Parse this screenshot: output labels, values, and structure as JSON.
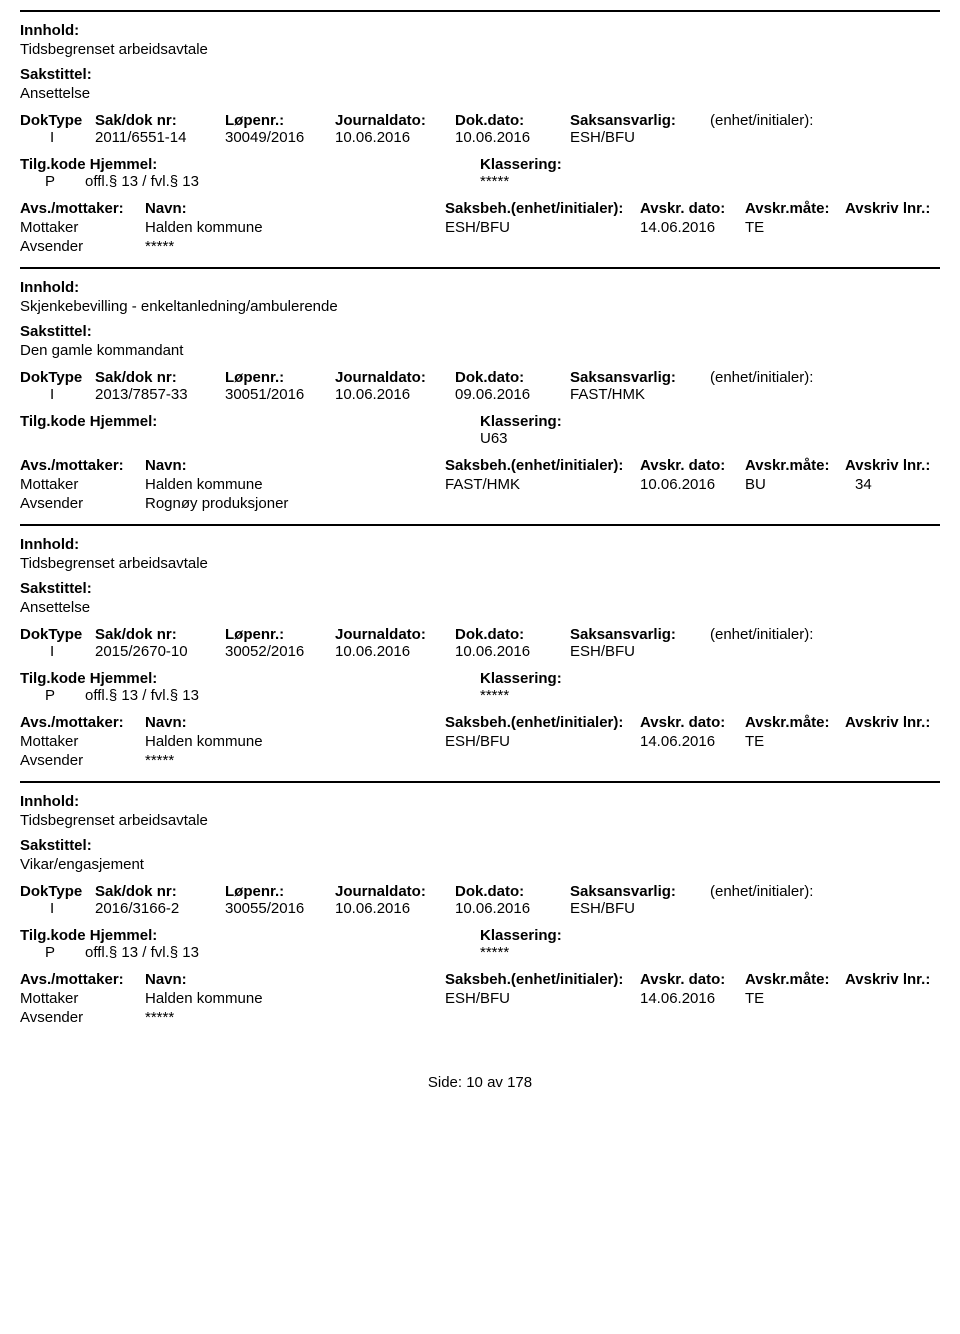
{
  "labels": {
    "innhold": "Innhold:",
    "sakstittel": "Sakstittel:",
    "doktype": "DokType",
    "sakdok": "Sak/dok nr:",
    "lopenr": "Løpenr.:",
    "journaldato": "Journaldato:",
    "dokdato": "Dok.dato:",
    "saksansvarlig": "Saksansvarlig:",
    "enhet": "(enhet/initialer):",
    "tilgkode": "Tilg.kode",
    "hjemmel": "Hjemmel:",
    "klassering": "Klassering:",
    "avsmottaker": "Avs./mottaker:",
    "navn": "Navn:",
    "saksbeh_enhet": "Saksbeh.(enhet/initialer):",
    "avskrdato": "Avskr. dato:",
    "avskrmate": "Avskr.måte:",
    "avskrlnr": "Avskriv lnr.:",
    "mottaker": "Mottaker",
    "avsender": "Avsender",
    "side": "Side:",
    "av": "av"
  },
  "entries": [
    {
      "innhold": "Tidsbegrenset arbeidsavtale",
      "sakstittel": "Ansettelse",
      "doktype": "I",
      "sakdok": "2011/6551-14",
      "lopenr": "30049/2016",
      "journaldato": "10.06.2016",
      "dokdato": "10.06.2016",
      "saksansvarlig": "ESH/BFU",
      "tilgkode": "P",
      "hjemmel": "offl.§ 13 / fvl.§ 13",
      "klassering": "*****",
      "parties": [
        {
          "role": "Mottaker",
          "navn": "Halden kommune",
          "saksbeh": "ESH/BFU",
          "avskrdato": "14.06.2016",
          "avskrmate": "TE",
          "avskrlnr": ""
        },
        {
          "role": "Avsender",
          "navn": "*****",
          "saksbeh": "",
          "avskrdato": "",
          "avskrmate": "",
          "avskrlnr": ""
        }
      ]
    },
    {
      "innhold": "Skjenkebevilling - enkeltanledning/ambulerende",
      "sakstittel": "Den gamle kommandant",
      "doktype": "I",
      "sakdok": "2013/7857-33",
      "lopenr": "30051/2016",
      "journaldato": "10.06.2016",
      "dokdato": "09.06.2016",
      "saksansvarlig": "FAST/HMK",
      "tilgkode": "",
      "hjemmel": "",
      "klassering": "U63",
      "parties": [
        {
          "role": "Mottaker",
          "navn": "Halden kommune",
          "saksbeh": "FAST/HMK",
          "avskrdato": "10.06.2016",
          "avskrmate": "BU",
          "avskrlnr": "34"
        },
        {
          "role": "Avsender",
          "navn": "Rognøy produksjoner",
          "saksbeh": "",
          "avskrdato": "",
          "avskrmate": "",
          "avskrlnr": ""
        }
      ]
    },
    {
      "innhold": "Tidsbegrenset arbeidsavtale",
      "sakstittel": "Ansettelse",
      "doktype": "I",
      "sakdok": "2015/2670-10",
      "lopenr": "30052/2016",
      "journaldato": "10.06.2016",
      "dokdato": "10.06.2016",
      "saksansvarlig": "ESH/BFU",
      "tilgkode": "P",
      "hjemmel": "offl.§ 13 / fvl.§ 13",
      "klassering": "*****",
      "parties": [
        {
          "role": "Mottaker",
          "navn": "Halden kommune",
          "saksbeh": "ESH/BFU",
          "avskrdato": "14.06.2016",
          "avskrmate": "TE",
          "avskrlnr": ""
        },
        {
          "role": "Avsender",
          "navn": "*****",
          "saksbeh": "",
          "avskrdato": "",
          "avskrmate": "",
          "avskrlnr": ""
        }
      ]
    },
    {
      "innhold": "Tidsbegrenset arbeidsavtale",
      "sakstittel": "Vikar/engasjement",
      "doktype": "I",
      "sakdok": "2016/3166-2",
      "lopenr": "30055/2016",
      "journaldato": "10.06.2016",
      "dokdato": "10.06.2016",
      "saksansvarlig": "ESH/BFU",
      "tilgkode": "P",
      "hjemmel": "offl.§ 13 / fvl.§ 13",
      "klassering": "*****",
      "parties": [
        {
          "role": "Mottaker",
          "navn": "Halden kommune",
          "saksbeh": "ESH/BFU",
          "avskrdato": "14.06.2016",
          "avskrmate": "TE",
          "avskrlnr": ""
        },
        {
          "role": "Avsender",
          "navn": "*****",
          "saksbeh": "",
          "avskrdato": "",
          "avskrmate": "",
          "avskrlnr": ""
        }
      ]
    }
  ],
  "page": {
    "current": "10",
    "total": "178"
  }
}
